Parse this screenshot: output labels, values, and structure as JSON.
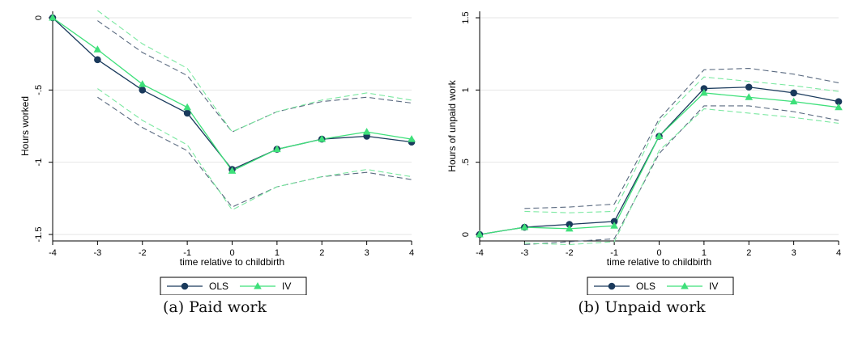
{
  "colors": {
    "ols": "#1a3a5c",
    "ols_ci": "#5a6a80",
    "iv": "#3ee07a",
    "iv_ci": "#7ae8a0",
    "grid": "#e6e6e6",
    "background": "#ffffff"
  },
  "chart_data": [
    {
      "type": "line",
      "caption": "(a) Paid work",
      "xlabel": "time relative to childbirth",
      "ylabel": "Hours worked",
      "x": [
        -4,
        -3,
        -2,
        -1,
        0,
        1,
        2,
        3,
        4
      ],
      "xticks": [
        "-4",
        "-3",
        "-2",
        "-1",
        "0",
        "1",
        "2",
        "3",
        "4"
      ],
      "ylim": [
        -1.5,
        0
      ],
      "yticks": [
        {
          "value": 0,
          "label": "0"
        },
        {
          "value": -0.5,
          "label": "-.5"
        },
        {
          "value": -1,
          "label": "-1"
        },
        {
          "value": -1.5,
          "label": "-1.5"
        }
      ],
      "grid": true,
      "legend_placement": "bottom",
      "series": [
        {
          "name": "OLS",
          "marker": "circle",
          "values": [
            0,
            -0.29,
            -0.5,
            -0.66,
            -1.05,
            -0.91,
            -0.84,
            -0.82,
            -0.86
          ]
        },
        {
          "name": "IV",
          "marker": "triangle",
          "values": [
            0,
            -0.22,
            -0.46,
            -0.62,
            -1.06,
            -0.91,
            -0.84,
            -0.79,
            -0.84
          ]
        }
      ],
      "ci": [
        {
          "series": "OLS",
          "upper": [
            null,
            -0.02,
            -0.24,
            -0.4,
            -0.79,
            -0.65,
            -0.58,
            -0.55,
            -0.59
          ],
          "lower": [
            null,
            -0.55,
            -0.76,
            -0.92,
            -1.31,
            -1.17,
            -1.1,
            -1.07,
            -1.12
          ]
        },
        {
          "series": "IV",
          "upper": [
            null,
            0.05,
            -0.18,
            -0.35,
            -0.79,
            -0.65,
            -0.57,
            -0.52,
            -0.57
          ],
          "lower": [
            null,
            -0.49,
            -0.71,
            -0.88,
            -1.33,
            -1.17,
            -1.1,
            -1.05,
            -1.1
          ]
        }
      ]
    },
    {
      "type": "line",
      "caption": "(b) Unpaid work",
      "xlabel": "time relative to childbirth",
      "ylabel": "Hours of unpaid work",
      "x": [
        -4,
        -3,
        -2,
        -1,
        0,
        1,
        2,
        3,
        4
      ],
      "xticks": [
        "-4",
        "-3",
        "-2",
        "-1",
        "0",
        "1",
        "2",
        "3",
        "4"
      ],
      "ylim": [
        0,
        1.5
      ],
      "yticks": [
        {
          "value": 0,
          "label": "0"
        },
        {
          "value": 0.5,
          "label": ".5"
        },
        {
          "value": 1,
          "label": "1"
        },
        {
          "value": 1.5,
          "label": "1.5"
        }
      ],
      "grid": true,
      "legend_placement": "bottom",
      "series": [
        {
          "name": "OLS",
          "marker": "circle",
          "values": [
            0,
            0.05,
            0.07,
            0.09,
            0.68,
            1.01,
            1.02,
            0.98,
            0.92
          ]
        },
        {
          "name": "IV",
          "marker": "triangle",
          "values": [
            0,
            0.05,
            0.04,
            0.06,
            0.68,
            0.98,
            0.95,
            0.92,
            0.88
          ]
        }
      ],
      "ci": [
        {
          "series": "OLS",
          "upper": [
            null,
            0.18,
            0.19,
            0.21,
            0.8,
            1.14,
            1.15,
            1.11,
            1.05
          ],
          "lower": [
            null,
            -0.07,
            -0.05,
            -0.03,
            0.56,
            0.89,
            0.89,
            0.85,
            0.79
          ]
        },
        {
          "series": "IV",
          "upper": [
            null,
            0.16,
            0.15,
            0.16,
            0.78,
            1.09,
            1.06,
            1.03,
            0.99
          ],
          "lower": [
            null,
            -0.06,
            -0.07,
            -0.05,
            0.58,
            0.87,
            0.84,
            0.81,
            0.77
          ]
        }
      ]
    }
  ]
}
